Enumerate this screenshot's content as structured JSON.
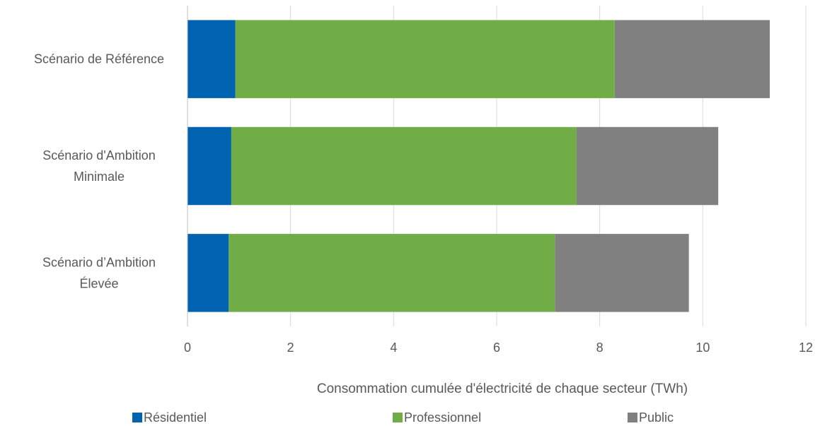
{
  "chart_data": {
    "type": "bar",
    "orientation": "horizontal",
    "stacked": true,
    "categories": [
      [
        "Scénario de Référence"
      ],
      [
        "Scénario d'Ambition",
        "Minimale"
      ],
      [
        "Scénario d’Ambition",
        "Élevée"
      ]
    ],
    "series": [
      {
        "name": "Résidentiel",
        "color": "#0063AF",
        "values": [
          0.93,
          0.85,
          0.8
        ]
      },
      {
        "name": "Professionnel",
        "color": "#70AD47",
        "values": [
          7.36,
          6.7,
          6.33
        ]
      },
      {
        "name": "Public",
        "color": "#808080",
        "values": [
          3.01,
          2.75,
          2.6
        ]
      }
    ],
    "xlabel": "Consommation cumulée d'électricité de chaque secteur (TWh)",
    "ylabel": "",
    "xlim": [
      0,
      12
    ],
    "xticks": [
      0,
      2,
      4,
      6,
      8,
      10,
      12
    ],
    "grid": "vertical",
    "legend": "bottom"
  }
}
